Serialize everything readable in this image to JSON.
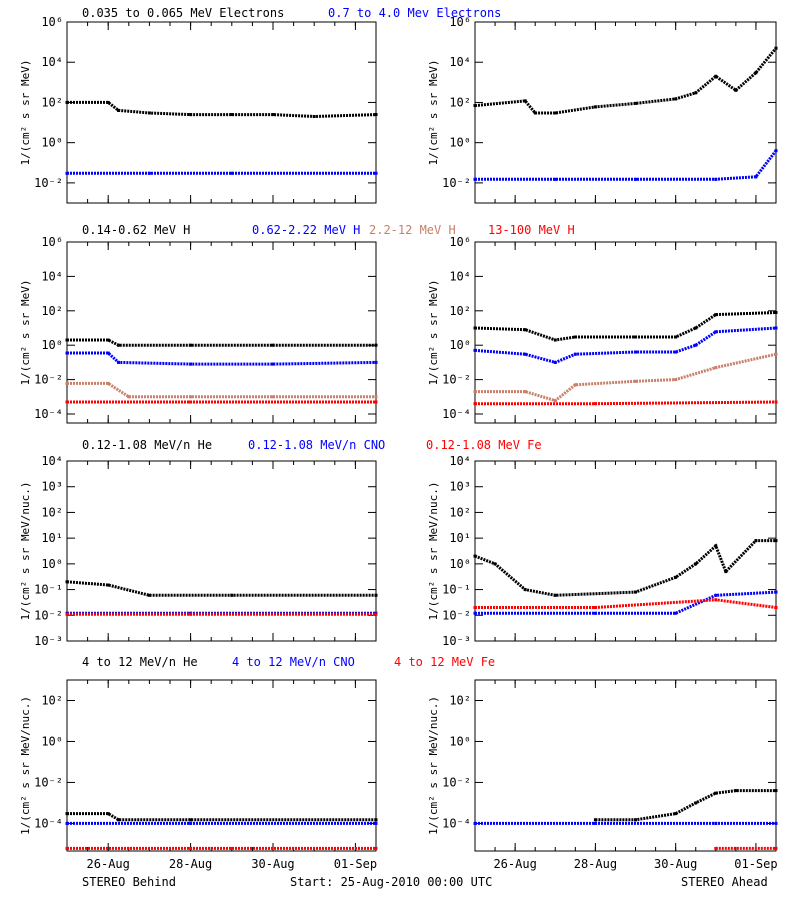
{
  "footer": {
    "left": "STEREO Behind",
    "center": "Start: 25-Aug-2010 00:00 UTC",
    "right": "STEREO Ahead"
  },
  "x_tick_labels": [
    "26-Aug",
    "28-Aug",
    "30-Aug",
    "01-Sep"
  ],
  "colors": {
    "black": "#000000",
    "blue": "#0000ff",
    "salmon": "#c8806a",
    "red": "#ff0000"
  },
  "rows": [
    {
      "legend": [
        {
          "label": "0.035 to 0.065 MeV Electrons",
          "color": "#000000"
        },
        {
          "label": "0.7 to 4.0 Mev Electrons",
          "color": "#0000ff"
        }
      ],
      "ylabel": "1/(cm² s sr MeV)",
      "y_ticks": [
        "10⁻²",
        "10⁰",
        "10²",
        "10⁴",
        "10⁶"
      ]
    },
    {
      "legend": [
        {
          "label": "0.14-0.62 MeV H",
          "color": "#000000"
        },
        {
          "label": "0.62-2.22 MeV H",
          "color": "#0000ff"
        },
        {
          "label": "2.2-12 MeV H",
          "color": "#c8806a"
        },
        {
          "label": "13-100 MeV H",
          "color": "#ff0000"
        }
      ],
      "ylabel": "1/(cm² s sr MeV)",
      "y_ticks": [
        "10⁻⁴",
        "10⁻²",
        "10⁰",
        "10²",
        "10⁴",
        "10⁶"
      ]
    },
    {
      "legend": [
        {
          "label": "0.12-1.08 MeV/n He",
          "color": "#000000"
        },
        {
          "label": "0.12-1.08 MeV/n CNO",
          "color": "#0000ff"
        },
        {
          "label": "0.12-1.08 MeV Fe",
          "color": "#ff0000"
        }
      ],
      "ylabel": "1/(cm² s sr MeV/nuc.)",
      "y_ticks": [
        "10⁻³",
        "10⁻²",
        "10⁻¹",
        "10⁰",
        "10¹",
        "10²",
        "10³",
        "10⁴"
      ]
    },
    {
      "legend": [
        {
          "label": "4 to 12 MeV/n He",
          "color": "#000000"
        },
        {
          "label": "4 to 12 MeV/n CNO",
          "color": "#0000ff"
        },
        {
          "label": "4 to 12 MeV Fe",
          "color": "#ff0000"
        }
      ],
      "ylabel": "1/(cm² s sr MeV/nuc.)",
      "y_ticks": [
        "10⁻⁴",
        "10⁻²",
        "10⁰",
        "10²"
      ]
    }
  ],
  "chart_data": [
    {
      "type": "scatter",
      "panel": "row1-behind",
      "x_range": [
        "2010-08-25 00:00",
        "2010-09-01 12:00"
      ],
      "y_scale": "log",
      "ylim": [
        0.001,
        1000000
      ],
      "x_ticks": [
        "2010-08-26",
        "2010-08-28",
        "2010-08-30",
        "2010-09-01"
      ],
      "series": [
        {
          "name": "0.035 to 0.065 MeV Electrons",
          "color": "#000000",
          "x": [
            "2010-08-25",
            "2010-08-26",
            "2010-08-26 06:00",
            "2010-08-27",
            "2010-08-28",
            "2010-08-29",
            "2010-08-30",
            "2010-08-31",
            "2010-09-01 12:00"
          ],
          "values": [
            100,
            100,
            40,
            30,
            25,
            25,
            25,
            20,
            25
          ]
        },
        {
          "name": "0.7 to 4.0 Mev Electrons",
          "color": "#0000ff",
          "x": [
            "2010-08-25",
            "2010-08-27",
            "2010-08-29",
            "2010-09-01 12:00"
          ],
          "values": [
            0.03,
            0.03,
            0.03,
            0.03
          ]
        }
      ]
    },
    {
      "type": "scatter",
      "panel": "row1-ahead",
      "x_range": [
        "2010-08-25 00:00",
        "2010-09-01 12:00"
      ],
      "y_scale": "log",
      "ylim": [
        0.001,
        1000000
      ],
      "x_ticks": [
        "2010-08-26",
        "2010-08-28",
        "2010-08-30",
        "2010-09-01"
      ],
      "series": [
        {
          "name": "0.035 to 0.065 MeV Electrons",
          "color": "#000000",
          "x": [
            "2010-08-25",
            "2010-08-26 06:00",
            "2010-08-26 12:00",
            "2010-08-27",
            "2010-08-28",
            "2010-08-29",
            "2010-08-30",
            "2010-08-30 12:00",
            "2010-08-31",
            "2010-08-31 12:00",
            "2010-09-01",
            "2010-09-01 12:00"
          ],
          "values": [
            70,
            120,
            30,
            30,
            60,
            90,
            150,
            300,
            2000,
            400,
            3000,
            50000
          ]
        },
        {
          "name": "0.7 to 4.0 Mev Electrons",
          "color": "#0000ff",
          "x": [
            "2010-08-25",
            "2010-08-27",
            "2010-08-29",
            "2010-08-31",
            "2010-09-01",
            "2010-09-01 12:00"
          ],
          "values": [
            0.015,
            0.015,
            0.015,
            0.015,
            0.02,
            0.4
          ]
        }
      ]
    },
    {
      "type": "scatter",
      "panel": "row2-behind",
      "x_range": [
        "2010-08-25 00:00",
        "2010-09-01 12:00"
      ],
      "y_scale": "log",
      "ylim": [
        3e-05,
        1000000
      ],
      "x_ticks": [
        "2010-08-26",
        "2010-08-28",
        "2010-08-30",
        "2010-09-01"
      ],
      "series": [
        {
          "name": "0.14-0.62 MeV H",
          "color": "#000000",
          "x": [
            "2010-08-25",
            "2010-08-26",
            "2010-08-26 06:00",
            "2010-08-28",
            "2010-08-30",
            "2010-09-01 12:00"
          ],
          "values": [
            2,
            2,
            1,
            1,
            1,
            1
          ]
        },
        {
          "name": "0.62-2.22 MeV H",
          "color": "#0000ff",
          "x": [
            "2010-08-25",
            "2010-08-26",
            "2010-08-26 06:00",
            "2010-08-28",
            "2010-08-30",
            "2010-09-01 12:00"
          ],
          "values": [
            0.35,
            0.35,
            0.1,
            0.08,
            0.08,
            0.1
          ]
        },
        {
          "name": "2.2-12 MeV H",
          "color": "#c8806a",
          "x": [
            "2010-08-25",
            "2010-08-26",
            "2010-08-26 12:00",
            "2010-08-28",
            "2010-08-30",
            "2010-09-01 12:00"
          ],
          "values": [
            0.006,
            0.006,
            0.001,
            0.001,
            0.001,
            0.001
          ]
        },
        {
          "name": "13-100 MeV H",
          "color": "#ff0000",
          "x": [
            "2010-08-25",
            "2010-08-28",
            "2010-09-01 12:00"
          ],
          "values": [
            0.0005,
            0.0005,
            0.0005
          ]
        }
      ]
    },
    {
      "type": "scatter",
      "panel": "row2-ahead",
      "x_range": [
        "2010-08-25 00:00",
        "2010-09-01 12:00"
      ],
      "y_scale": "log",
      "ylim": [
        3e-05,
        1000000
      ],
      "x_ticks": [
        "2010-08-26",
        "2010-08-28",
        "2010-08-30",
        "2010-09-01"
      ],
      "series": [
        {
          "name": "0.14-0.62 MeV H",
          "color": "#000000",
          "x": [
            "2010-08-25",
            "2010-08-26 06:00",
            "2010-08-27",
            "2010-08-27 12:00",
            "2010-08-29",
            "2010-08-30",
            "2010-08-30 12:00",
            "2010-08-31",
            "2010-09-01 12:00"
          ],
          "values": [
            10,
            8,
            2,
            3,
            3,
            3,
            10,
            60,
            80
          ]
        },
        {
          "name": "0.62-2.22 MeV H",
          "color": "#0000ff",
          "x": [
            "2010-08-25",
            "2010-08-26 06:00",
            "2010-08-27",
            "2010-08-27 12:00",
            "2010-08-29",
            "2010-08-30",
            "2010-08-30 12:00",
            "2010-08-31",
            "2010-09-01 12:00"
          ],
          "values": [
            0.5,
            0.3,
            0.1,
            0.3,
            0.4,
            0.4,
            1,
            6,
            10
          ]
        },
        {
          "name": "2.2-12 MeV H",
          "color": "#c8806a",
          "x": [
            "2010-08-25",
            "2010-08-26 06:00",
            "2010-08-27",
            "2010-08-27 12:00",
            "2010-08-29",
            "2010-08-30",
            "2010-08-31",
            "2010-09-01 12:00"
          ],
          "values": [
            0.002,
            0.002,
            0.0006,
            0.005,
            0.008,
            0.01,
            0.05,
            0.3
          ]
        },
        {
          "name": "13-100 MeV H",
          "color": "#ff0000",
          "x": [
            "2010-08-25",
            "2010-08-28",
            "2010-09-01 12:00"
          ],
          "values": [
            0.0004,
            0.0004,
            0.0005
          ]
        }
      ]
    },
    {
      "type": "scatter",
      "panel": "row3-behind",
      "x_range": [
        "2010-08-25 00:00",
        "2010-09-01 12:00"
      ],
      "y_scale": "log",
      "ylim": [
        0.001,
        10000
      ],
      "x_ticks": [
        "2010-08-26",
        "2010-08-28",
        "2010-08-30",
        "2010-09-01"
      ],
      "series": [
        {
          "name": "0.12-1.08 MeV/n He",
          "color": "#000000",
          "x": [
            "2010-08-25",
            "2010-08-26",
            "2010-08-27",
            "2010-08-29",
            "2010-09-01 12:00"
          ],
          "values": [
            0.2,
            0.15,
            0.06,
            0.06,
            0.06
          ]
        },
        {
          "name": "0.12-1.08 MeV/n CNO",
          "color": "#0000ff",
          "x": [
            "2010-08-25",
            "2010-08-28",
            "2010-09-01 12:00"
          ],
          "values": [
            0.012,
            0.012,
            0.012
          ]
        },
        {
          "name": "0.12-1.08 MeV Fe",
          "color": "#ff0000",
          "x": [
            "2010-08-25",
            "2010-08-28",
            "2010-09-01 12:00"
          ],
          "values": [
            0.011,
            0.011,
            0.011
          ]
        }
      ]
    },
    {
      "type": "scatter",
      "panel": "row3-ahead",
      "x_range": [
        "2010-08-25 00:00",
        "2010-09-01 12:00"
      ],
      "y_scale": "log",
      "ylim": [
        0.001,
        10000
      ],
      "x_ticks": [
        "2010-08-26",
        "2010-08-28",
        "2010-08-30",
        "2010-09-01"
      ],
      "series": [
        {
          "name": "0.12-1.08 MeV/n He",
          "color": "#000000",
          "x": [
            "2010-08-25",
            "2010-08-25 12:00",
            "2010-08-26 06:00",
            "2010-08-27",
            "2010-08-29",
            "2010-08-30",
            "2010-08-30 12:00",
            "2010-08-31",
            "2010-08-31 06:00",
            "2010-09-01",
            "2010-09-01 12:00"
          ],
          "values": [
            2,
            1,
            0.1,
            0.06,
            0.08,
            0.3,
            1,
            5,
            0.5,
            8,
            8
          ]
        },
        {
          "name": "0.12-1.08 MeV/n CNO",
          "color": "#0000ff",
          "x": [
            "2010-08-25",
            "2010-08-28",
            "2010-08-30",
            "2010-08-31",
            "2010-09-01 12:00"
          ],
          "values": [
            0.012,
            0.012,
            0.012,
            0.06,
            0.08
          ]
        },
        {
          "name": "0.12-1.08 MeV Fe",
          "color": "#ff0000",
          "x": [
            "2010-08-25",
            "2010-08-28",
            "2010-08-31",
            "2010-09-01 12:00"
          ],
          "values": [
            0.02,
            0.02,
            0.04,
            0.02
          ]
        }
      ]
    },
    {
      "type": "scatter",
      "panel": "row4-behind",
      "x_range": [
        "2010-08-25 00:00",
        "2010-09-01 12:00"
      ],
      "y_scale": "log",
      "ylim": [
        4.5e-06,
        1000
      ],
      "x_ticks": [
        "2010-08-26",
        "2010-08-28",
        "2010-08-30",
        "2010-09-01"
      ],
      "series": [
        {
          "name": "4 to 12 MeV/n He",
          "color": "#000000",
          "x": [
            "2010-08-25",
            "2010-08-26",
            "2010-08-26 06:00",
            "2010-08-28",
            "2010-09-01 12:00"
          ],
          "values": [
            0.0003,
            0.0003,
            0.00015,
            0.00015,
            0.00015
          ]
        },
        {
          "name": "4 to 12 MeV/n CNO",
          "color": "#0000ff",
          "x": [
            "2010-08-25",
            "2010-08-28",
            "2010-09-01 12:00"
          ],
          "values": [
            0.0001,
            0.0001,
            0.0001
          ]
        },
        {
          "name": "4 to 12 MeV Fe",
          "color": "#ff0000",
          "x": [
            "2010-08-25",
            "2010-08-28",
            "2010-09-01 12:00"
          ],
          "values": [
            6e-06,
            6e-06,
            6e-06
          ]
        }
      ]
    },
    {
      "type": "scatter",
      "panel": "row4-ahead",
      "x_range": [
        "2010-08-25 00:00",
        "2010-09-01 12:00"
      ],
      "y_scale": "log",
      "ylim": [
        4.5e-06,
        1000
      ],
      "x_ticks": [
        "2010-08-26",
        "2010-08-28",
        "2010-08-30",
        "2010-09-01"
      ],
      "series": [
        {
          "name": "4 to 12 MeV/n He",
          "color": "#000000",
          "x": [
            "2010-08-28",
            "2010-08-29",
            "2010-08-30",
            "2010-08-30 12:00",
            "2010-08-31",
            "2010-08-31 12:00",
            "2010-09-01 12:00"
          ],
          "values": [
            0.00015,
            0.00015,
            0.0003,
            0.001,
            0.003,
            0.004,
            0.004
          ]
        },
        {
          "name": "4 to 12 MeV/n CNO",
          "color": "#0000ff",
          "x": [
            "2010-08-25",
            "2010-08-28",
            "2010-08-31",
            "2010-09-01 12:00"
          ],
          "values": [
            0.0001,
            0.0001,
            0.0001,
            0.0001
          ]
        },
        {
          "name": "4 to 12 MeV Fe",
          "color": "#ff0000",
          "x": [
            "2010-08-31",
            "2010-09-01 12:00"
          ],
          "values": [
            6e-06,
            6e-06
          ]
        }
      ]
    }
  ]
}
